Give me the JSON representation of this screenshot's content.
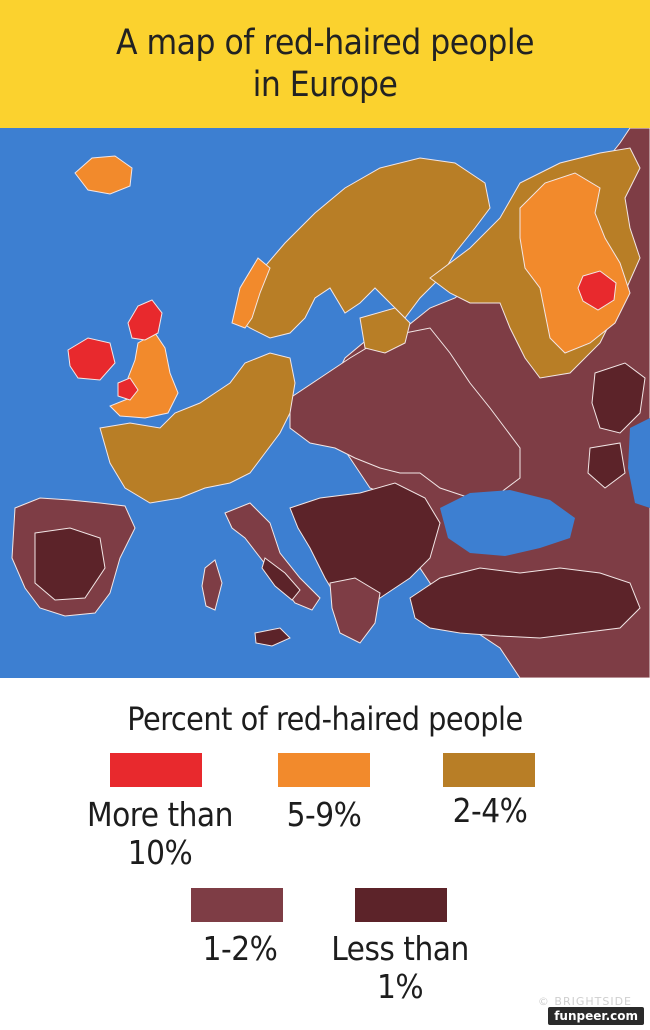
{
  "header": {
    "title_line1": "A map of red-haired people",
    "title_line2": "in Europe"
  },
  "legend": {
    "title": "Percent of red-haired people",
    "items": [
      {
        "label_line1": "More than",
        "label_line2": "10%",
        "color": "#e8292d"
      },
      {
        "label_line1": "5-9%",
        "label_line2": "",
        "color": "#f28a2c"
      },
      {
        "label_line1": "2-4%",
        "label_line2": "",
        "color": "#b87e26"
      },
      {
        "label_line1": "1-2%",
        "label_line2": "",
        "color": "#7e3d45"
      },
      {
        "label_line1": "Less than",
        "label_line2": "1%",
        "color": "#5c2329"
      }
    ]
  },
  "colors": {
    "sea": "#3d7fd1",
    "border": "#f2e6e6",
    "header_bg": "#fbd22e"
  },
  "footer": {
    "brand": "© BRIGHTSIDE",
    "watermark": "funpeer.com"
  }
}
